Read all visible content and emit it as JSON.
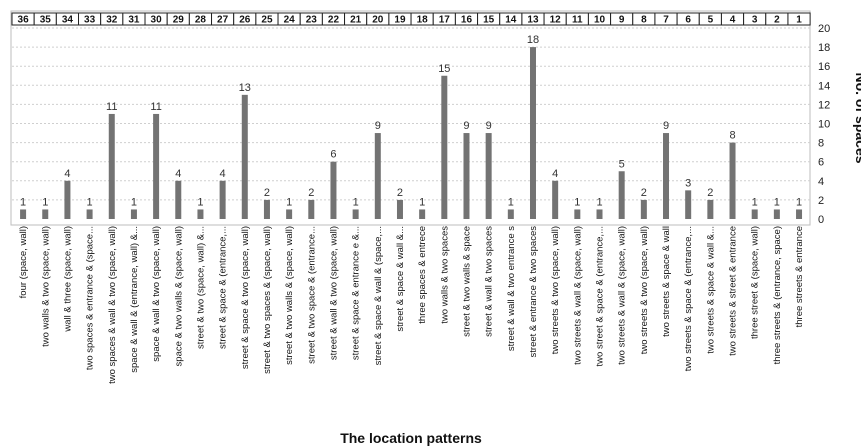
{
  "chart_data": {
    "type": "bar",
    "numbers": [
      "36",
      "35",
      "34",
      "33",
      "32",
      "31",
      "30",
      "29",
      "28",
      "27",
      "26",
      "25",
      "24",
      "23",
      "22",
      "21",
      "20",
      "19",
      "18",
      "17",
      "16",
      "15",
      "14",
      "13",
      "12",
      "11",
      "10",
      "9",
      "8",
      "7",
      "6",
      "5",
      "4",
      "3",
      "2",
      "1"
    ],
    "categories": [
      "four (space, wall)",
      "two walls & two (space, wall)",
      "wall & three (space, wall)",
      "two spaces & entrance & (space...",
      "two spaces & wall & two (space, wall)",
      "space & wall & (entrance, wall) &...",
      "space & wall & two (space, wall)",
      "space & two walls & (space, wall)",
      "street & two (space, wall) &...",
      "street & space & (entrance,...",
      "street & space & two (space, wall)",
      "street & two spaces & (space, wall)",
      "street & two walls & (space, wall)",
      "street & two space & (entrance...",
      "street & wall & two (space, wall)",
      "street & space & entrance e &...",
      "street & space & wall & (space,...",
      "street & space & wall &...",
      "three spaces & entrece",
      "two walls & two spaces",
      "street & two walls & space",
      "street & wall & two spaces",
      "street & wall & two entrance s",
      "street & entrance & two spaces",
      "two streets & two (space, wall)",
      "two streets & wall & (space, wall)",
      "two street & space & (entrance,...",
      "two streets & wall & (space, wall)",
      "two streets & two (space, wall)",
      "two streets & space & wall",
      "two streets & space & (entrance,...",
      "two streets & space & wall &...",
      "two streets & street & entrance",
      "three street & (space, wall)",
      "three streets & (entrance, space)",
      "three streets & entrance"
    ],
    "values": [
      1,
      1,
      4,
      1,
      11,
      1,
      11,
      4,
      1,
      4,
      13,
      2,
      1,
      2,
      6,
      1,
      9,
      2,
      1,
      15,
      9,
      9,
      1,
      18,
      4,
      1,
      1,
      5,
      2,
      9,
      3,
      2,
      8,
      1,
      1,
      1
    ],
    "yticks": [
      "0",
      "2",
      "4",
      "6",
      "8",
      "10",
      "12",
      "14",
      "16",
      "18",
      "20"
    ],
    "ylim": [
      0,
      20
    ],
    "ylabel": "No. of spaces",
    "xlabel": "The location patterns",
    "bar_color": "#737373",
    "grid": true
  }
}
